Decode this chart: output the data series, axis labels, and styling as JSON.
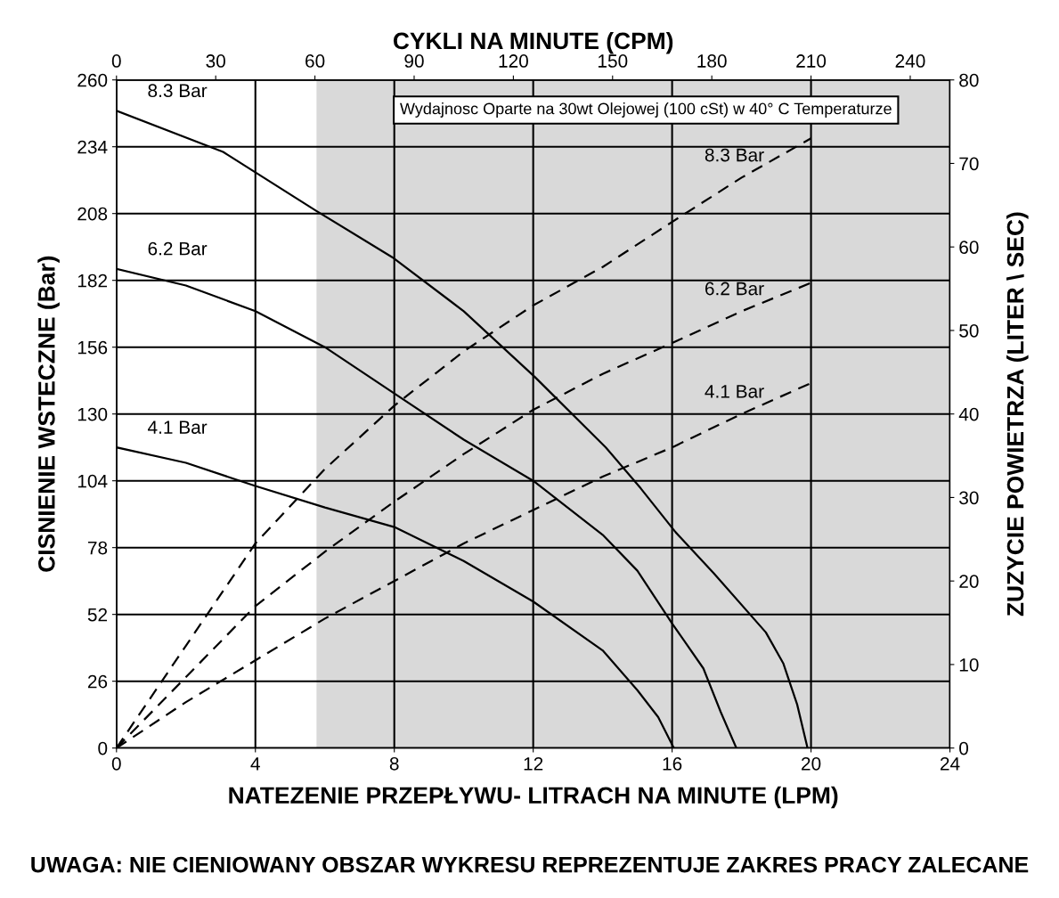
{
  "chart_data": {
    "type": "line",
    "xlabel": "NATEZENIE PRZEPŁYWU- LITRACH NA MINUTE (LPM)",
    "ylabel": "CISNIENIE WSTECZNE (Bar)",
    "y2label": "ZUZYCIE POWIETRZA (LITER \\ SEC)",
    "x2label": "CYKLI NA MINUTE (CPM)",
    "xlim": [
      0,
      24
    ],
    "xticks": [
      0,
      4,
      8,
      12,
      16,
      20,
      24
    ],
    "ylim": [
      0,
      260
    ],
    "yticks": [
      0,
      26,
      52,
      78,
      104,
      130,
      156,
      182,
      208,
      234,
      260
    ],
    "y2lim": [
      0,
      80
    ],
    "y2ticks": [
      0,
      10,
      20,
      30,
      40,
      50,
      60,
      70,
      80
    ],
    "x2lim": [
      0,
      252
    ],
    "x2ticks": [
      0,
      30,
      60,
      90,
      120,
      150,
      180,
      210,
      240
    ],
    "grid": true,
    "legend": false,
    "marker": "none",
    "bands": [
      {
        "axis": "x",
        "from": 5.76,
        "to": 24,
        "color": "#d9d9d9"
      }
    ],
    "annotations": [
      "Wydajnosc Oparte na 30wt Olejowej (100 cSt) w 40° C Temperaturze",
      "UWAGA: NIE CIENIOWANY OBSZAR WYKRESU REPREZENTUJE ZAKRES PRACY ZALECANE"
    ],
    "series": [
      {
        "name": "8.3 Bar",
        "color": "#000000",
        "line_style": "solid",
        "x": [
          0,
          3.07,
          5.76,
          7.94,
          10,
          12.04,
          14.09,
          15.1,
          16.1,
          17.2,
          18.7,
          19.2,
          19.6,
          19.9
        ],
        "values": [
          248,
          232,
          209,
          191,
          170,
          144.5,
          117,
          101,
          84,
          68,
          45,
          33,
          17,
          0
        ]
      },
      {
        "name": "6.2 Bar",
        "color": "#000000",
        "line_style": "solid",
        "x": [
          0,
          2,
          4,
          6,
          8,
          10,
          12,
          14,
          15,
          16,
          16.9,
          17.4,
          17.85
        ],
        "values": [
          186.5,
          180,
          170,
          156,
          138,
          120,
          104,
          83,
          69,
          48.5,
          31,
          14,
          0
        ]
      },
      {
        "name": "4.1 Bar",
        "color": "#000000",
        "line_style": "solid",
        "x": [
          0,
          2,
          4,
          6,
          8,
          10,
          12,
          14,
          15,
          15.6,
          16.05
        ],
        "values": [
          117,
          111,
          102,
          93.6,
          86,
          72.8,
          57,
          38,
          22.5,
          12,
          0
        ]
      },
      {
        "name": "8.3 Bar",
        "color": "#000000",
        "line_style": "dashed",
        "axis": "y2",
        "x": [
          0,
          4,
          6,
          8,
          10,
          12,
          14,
          16,
          18,
          20
        ],
        "values": [
          0,
          24.5,
          33.4,
          41,
          47.5,
          53,
          57.6,
          63,
          68.3,
          73
        ]
      },
      {
        "name": "6.2 Bar",
        "color": "#000000",
        "line_style": "dashed",
        "axis": "y2",
        "x": [
          0,
          4,
          6,
          8,
          10,
          12,
          14,
          16,
          18,
          20
        ],
        "values": [
          0,
          17,
          23.5,
          29.5,
          35.2,
          40.5,
          44.8,
          48.5,
          52.3,
          55.7
        ]
      },
      {
        "name": "4.1 Bar",
        "color": "#000000",
        "line_style": "dashed",
        "axis": "y2",
        "x": [
          0,
          2,
          4,
          6,
          8,
          10,
          12,
          14,
          16,
          18,
          20
        ],
        "values": [
          0,
          5.5,
          10.5,
          15.5,
          20,
          24.5,
          28.5,
          32.5,
          36,
          40,
          43.7
        ]
      }
    ]
  }
}
